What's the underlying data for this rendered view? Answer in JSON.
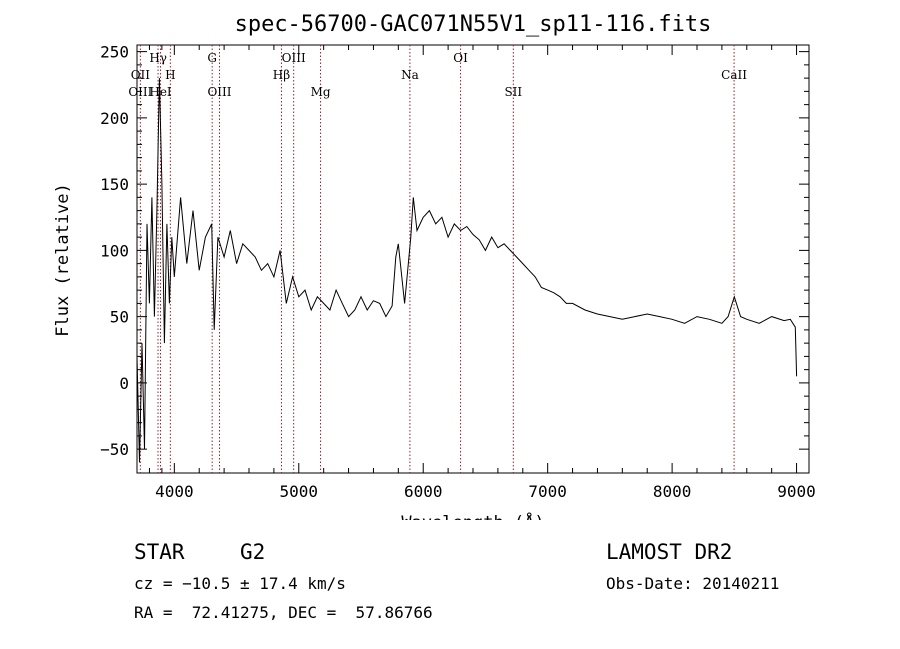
{
  "chart_data": {
    "type": "line",
    "title": "spec-56700-GAC071N55V1_sp11-116.fits",
    "xlabel": "Wavelength (Å)",
    "ylabel": "Flux (relative)",
    "xlim": [
      3700,
      9100
    ],
    "ylim": [
      -68,
      255
    ],
    "x_ticks": [
      4000,
      5000,
      6000,
      7000,
      8000,
      9000
    ],
    "x_tick_labels": [
      "4000",
      "5000",
      "6000",
      "7000",
      "8000",
      "9000"
    ],
    "y_ticks": [
      -50,
      0,
      50,
      100,
      150,
      200,
      250
    ],
    "y_tick_labels": [
      "−50",
      "0",
      "50",
      "100",
      "150",
      "200",
      "250"
    ],
    "grid": false,
    "line_color": "#000000",
    "marker_color": "#a0202a",
    "spectrum": {
      "name": "",
      "x": [
        3700,
        3720,
        3740,
        3760,
        3780,
        3800,
        3820,
        3840,
        3860,
        3880,
        3900,
        3920,
        3940,
        3960,
        3980,
        4000,
        4050,
        4100,
        4150,
        4200,
        4250,
        4300,
        4320,
        4350,
        4400,
        4450,
        4500,
        4550,
        4600,
        4650,
        4700,
        4750,
        4800,
        4850,
        4900,
        4950,
        5000,
        5050,
        5100,
        5150,
        5200,
        5250,
        5300,
        5350,
        5400,
        5450,
        5500,
        5550,
        5600,
        5650,
        5700,
        5750,
        5780,
        5800,
        5850,
        5900,
        5920,
        5950,
        6000,
        6050,
        6100,
        6150,
        6200,
        6250,
        6300,
        6350,
        6400,
        6450,
        6500,
        6550,
        6600,
        6650,
        6700,
        6750,
        6800,
        6850,
        6900,
        6950,
        7000,
        7050,
        7100,
        7150,
        7200,
        7300,
        7400,
        7500,
        7600,
        7700,
        7800,
        7900,
        8000,
        8100,
        8200,
        8300,
        8400,
        8450,
        8500,
        8550,
        8600,
        8700,
        8800,
        8900,
        8950,
        8990,
        9000
      ],
      "y": [
        20,
        -60,
        30,
        -50,
        120,
        60,
        140,
        50,
        130,
        230,
        150,
        30,
        120,
        60,
        110,
        80,
        140,
        90,
        130,
        85,
        110,
        120,
        40,
        110,
        95,
        115,
        90,
        105,
        100,
        95,
        85,
        90,
        80,
        100,
        60,
        80,
        65,
        70,
        55,
        65,
        60,
        55,
        70,
        60,
        50,
        55,
        65,
        55,
        62,
        60,
        50,
        58,
        95,
        105,
        60,
        110,
        140,
        115,
        125,
        130,
        120,
        125,
        110,
        120,
        115,
        118,
        112,
        108,
        100,
        110,
        102,
        105,
        100,
        95,
        90,
        85,
        80,
        72,
        70,
        68,
        65,
        60,
        60,
        55,
        52,
        50,
        48,
        50,
        52,
        50,
        48,
        45,
        50,
        48,
        45,
        50,
        65,
        50,
        48,
        45,
        50,
        47,
        48,
        42,
        5
      ]
    },
    "annotations": [
      {
        "label": "Hγ",
        "x": 3870
      },
      {
        "label": "H",
        "x": 3968
      },
      {
        "label": "OII",
        "x": 3727
      },
      {
        "label": "OIII",
        "x": 3727
      },
      {
        "label": "HeI",
        "x": 3889
      },
      {
        "label": "G",
        "x": 4304
      },
      {
        "label": "OIII",
        "x": 4363
      },
      {
        "label": "OIII",
        "x": 4959
      },
      {
        "label": "Hβ",
        "x": 4861
      },
      {
        "label": "Mg",
        "x": 5175
      },
      {
        "label": "Na",
        "x": 5893
      },
      {
        "label": "OI",
        "x": 6300
      },
      {
        "label": "SII",
        "x": 6724
      },
      {
        "label": "CaII",
        "x": 8498
      }
    ],
    "marker_lines_x": [
      3727,
      3869,
      3889,
      3968,
      4304,
      4363,
      4861,
      4959,
      5175,
      5893,
      6300,
      6724,
      8498
    ]
  },
  "footer": {
    "object_class": "STAR",
    "subclass": "G2",
    "redshift": "cz = −10.5 ± 17.4 km/s",
    "coords": "RA =  72.41275, DEC =  57.86766",
    "survey": "LAMOST DR2",
    "obs_date": "Obs-Date: 20140211"
  }
}
